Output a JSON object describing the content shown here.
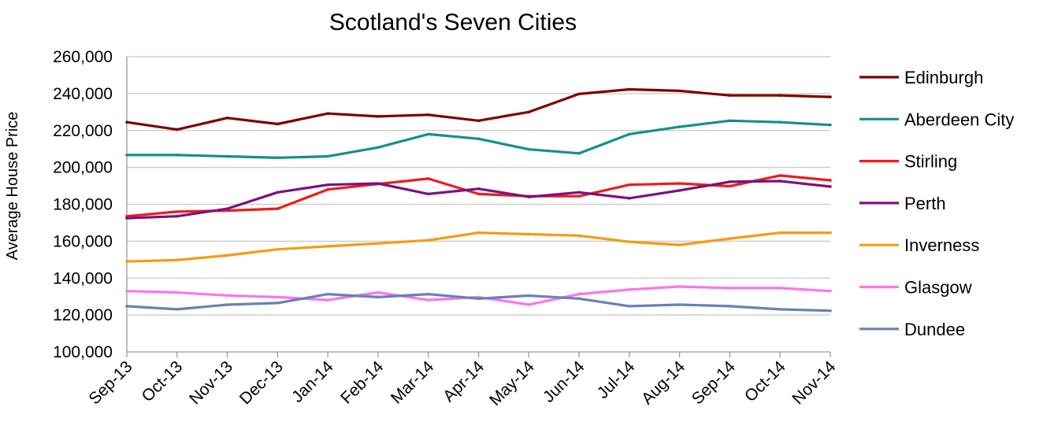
{
  "chart_data": {
    "type": "line",
    "title": "Scotland's Seven Cities",
    "xlabel": "",
    "ylabel": "Average House Price",
    "ylim": [
      100000,
      260000
    ],
    "y_ticks": [
      "100,000",
      "120,000",
      "140,000",
      "160,000",
      "180,000",
      "200,000",
      "220,000",
      "240,000",
      "260,000"
    ],
    "categories": [
      "Sep-13",
      "Oct-13",
      "Nov-13",
      "Dec-13",
      "Jan-14",
      "Feb-14",
      "Mar-14",
      "Apr-14",
      "May-14",
      "Jun-14",
      "Jul-14",
      "Aug-14",
      "Sep-14",
      "Oct-14",
      "Nov-14"
    ],
    "grid": true,
    "legend_position": "right",
    "series": [
      {
        "name": "Edinburgh",
        "color": "#7f0000",
        "values": [
          224500,
          220500,
          226800,
          223500,
          229200,
          227600,
          228500,
          225300,
          230000,
          239800,
          242300,
          241500,
          239000,
          239000,
          238200
        ]
      },
      {
        "name": "Aberdeen City",
        "color": "#178f8b",
        "values": [
          206700,
          206700,
          206000,
          205200,
          206000,
          210800,
          218000,
          215500,
          209800,
          207600,
          218000,
          222000,
          225300,
          224500,
          223000
        ]
      },
      {
        "name": "Stirling",
        "color": "#ee1c1c",
        "values": [
          173500,
          176000,
          176600,
          177600,
          188000,
          191000,
          193900,
          185600,
          184400,
          184400,
          190600,
          191300,
          189800,
          195600,
          193000
        ]
      },
      {
        "name": "Perth",
        "color": "#7b1180",
        "values": [
          172500,
          173500,
          177600,
          186500,
          190600,
          191300,
          185600,
          188400,
          184000,
          186500,
          183300,
          187500,
          192200,
          192600,
          189600
        ]
      },
      {
        "name": "Inverness",
        "color": "#f59b12",
        "values": [
          149000,
          149800,
          152300,
          155600,
          157200,
          158800,
          160500,
          164600,
          163800,
          163000,
          159700,
          158000,
          161400,
          164600,
          164600
        ]
      },
      {
        "name": "Glasgow",
        "color": "#f776f0",
        "values": [
          133000,
          132200,
          130600,
          129700,
          128100,
          132200,
          128100,
          129700,
          125600,
          131300,
          133800,
          135400,
          134600,
          134600,
          133000
        ]
      },
      {
        "name": "Dundee",
        "color": "#6a81b5",
        "values": [
          124800,
          123100,
          125600,
          126500,
          131300,
          129700,
          131300,
          128900,
          130500,
          128900,
          124800,
          125600,
          124800,
          123100,
          122300
        ]
      }
    ]
  }
}
